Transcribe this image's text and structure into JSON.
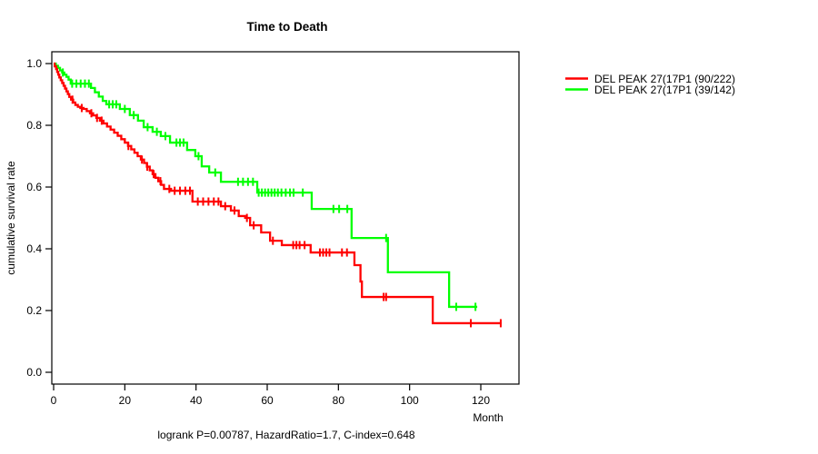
{
  "title": "Time to Death",
  "axes": {
    "xlabel": "Month",
    "ylabel": "cumulative survival rate"
  },
  "footer": {
    "stats": "logrank P=0.00787, HazardRatio=1.7, C-index=0.648"
  },
  "legend": {
    "items": [
      {
        "label": "DEL PEAK 27(17P1 (90/222)",
        "color": "#ff0000"
      },
      {
        "label": "DEL PEAK 27(17P1 (39/142)",
        "color": "#00ff00"
      }
    ]
  },
  "chart_data": {
    "type": "line",
    "subtype": "kaplan_meier_step",
    "title": "Time to Death",
    "xlabel": "Month",
    "ylabel": "cumulative survival rate",
    "xlim": [
      0,
      130
    ],
    "ylim": [
      0.0,
      1.04
    ],
    "x_ticks": [
      0,
      20,
      40,
      60,
      80,
      100,
      120
    ],
    "y_ticks": [
      0.0,
      0.2,
      0.4,
      0.6,
      0.8,
      1.0
    ],
    "grid": false,
    "legend_position": "right-outside",
    "annotation": "logrank P=0.00787, HazardRatio=1.7, C-index=0.648",
    "series": [
      {
        "name": "DEL PEAK 27(17P1 (90/222)",
        "color": "#ff0000",
        "events": 90,
        "n": 222,
        "end_month": 125.8,
        "steps": [
          [
            0,
            1.0
          ],
          [
            0.3,
            0.991
          ],
          [
            0.7,
            0.982
          ],
          [
            1.0,
            0.973
          ],
          [
            1.3,
            0.964
          ],
          [
            1.6,
            0.955
          ],
          [
            2.0,
            0.946
          ],
          [
            2.4,
            0.937
          ],
          [
            2.8,
            0.928
          ],
          [
            3.2,
            0.919
          ],
          [
            3.6,
            0.91
          ],
          [
            4.0,
            0.901
          ],
          [
            4.4,
            0.892
          ],
          [
            4.9,
            0.883
          ],
          [
            5.5,
            0.874
          ],
          [
            6.1,
            0.866
          ],
          [
            6.8,
            0.86
          ],
          [
            7.5,
            0.856
          ],
          [
            8.4,
            0.853
          ],
          [
            9.3,
            0.846
          ],
          [
            10.2,
            0.839
          ],
          [
            11.1,
            0.832
          ],
          [
            12.0,
            0.824
          ],
          [
            13.0,
            0.815
          ],
          [
            14.0,
            0.806
          ],
          [
            15.0,
            0.796
          ],
          [
            16.0,
            0.786
          ],
          [
            17.0,
            0.776
          ],
          [
            18.0,
            0.766
          ],
          [
            19.0,
            0.755
          ],
          [
            20.0,
            0.744
          ],
          [
            20.9,
            0.733
          ],
          [
            21.8,
            0.722
          ],
          [
            22.7,
            0.711
          ],
          [
            23.6,
            0.7
          ],
          [
            24.5,
            0.689
          ],
          [
            25.4,
            0.678
          ],
          [
            26.2,
            0.666
          ],
          [
            27.0,
            0.654
          ],
          [
            27.8,
            0.642
          ],
          [
            28.6,
            0.63
          ],
          [
            29.4,
            0.619
          ],
          [
            30.2,
            0.607
          ],
          [
            31.0,
            0.594
          ],
          [
            33.0,
            0.588
          ],
          [
            39.0,
            0.553
          ],
          [
            47.0,
            0.538
          ],
          [
            49.8,
            0.524
          ],
          [
            52.0,
            0.506
          ],
          [
            53.8,
            0.5
          ],
          [
            55.2,
            0.476
          ],
          [
            58.3,
            0.453
          ],
          [
            60.8,
            0.426
          ],
          [
            64.1,
            0.412
          ],
          [
            72.2,
            0.388
          ],
          [
            84.5,
            0.347
          ],
          [
            86.2,
            0.294
          ],
          [
            86.6,
            0.244
          ],
          [
            106.5,
            0.159
          ]
        ],
        "censor_months": [
          5.3,
          7.9,
          10.6,
          12.2,
          13.5,
          21.0,
          24.8,
          26.3,
          28.1,
          30.0,
          32.5,
          34.0,
          35.5,
          37.0,
          38.3,
          40.5,
          42.0,
          43.5,
          45.0,
          46.3,
          48.2,
          50.8,
          54.3,
          56.2,
          61.6,
          67.3,
          68.2,
          69.1,
          70.5,
          74.8,
          75.7,
          76.6,
          77.5,
          81.0,
          82.4,
          92.7,
          93.4,
          117.2,
          125.6
        ]
      },
      {
        "name": "DEL PEAK 27(17P1 (39/142)",
        "color": "#00ff00",
        "events": 39,
        "n": 142,
        "end_month": 119.0,
        "steps": [
          [
            0,
            1.0
          ],
          [
            0.6,
            0.993
          ],
          [
            1.2,
            0.986
          ],
          [
            1.8,
            0.978
          ],
          [
            2.4,
            0.971
          ],
          [
            3.0,
            0.964
          ],
          [
            3.6,
            0.957
          ],
          [
            4.2,
            0.948
          ],
          [
            4.8,
            0.935
          ],
          [
            10.5,
            0.921
          ],
          [
            11.6,
            0.907
          ],
          [
            12.7,
            0.893
          ],
          [
            13.8,
            0.879
          ],
          [
            14.8,
            0.868
          ],
          [
            18.6,
            0.853
          ],
          [
            21.4,
            0.833
          ],
          [
            23.7,
            0.815
          ],
          [
            25.3,
            0.794
          ],
          [
            27.8,
            0.779
          ],
          [
            30.1,
            0.765
          ],
          [
            32.7,
            0.744
          ],
          [
            37.5,
            0.72
          ],
          [
            39.8,
            0.7
          ],
          [
            41.6,
            0.667
          ],
          [
            43.7,
            0.647
          ],
          [
            47.0,
            0.617
          ],
          [
            57.2,
            0.582
          ],
          [
            72.5,
            0.529
          ],
          [
            83.7,
            0.435
          ],
          [
            93.9,
            0.324
          ],
          [
            111.1,
            0.212
          ]
        ],
        "censor_months": [
          2.6,
          5.2,
          6.4,
          7.6,
          8.8,
          9.9,
          15.6,
          16.6,
          17.6,
          20.0,
          22.5,
          26.4,
          29.0,
          31.4,
          34.5,
          35.5,
          36.5,
          40.7,
          45.4,
          51.8,
          53.2,
          54.6,
          56.0,
          57.6,
          58.5,
          59.4,
          60.3,
          61.2,
          62.1,
          63.0,
          64.0,
          65.2,
          66.4,
          67.4,
          70.0,
          78.6,
          80.2,
          82.5,
          93.4,
          113.1,
          118.5
        ]
      }
    ]
  }
}
